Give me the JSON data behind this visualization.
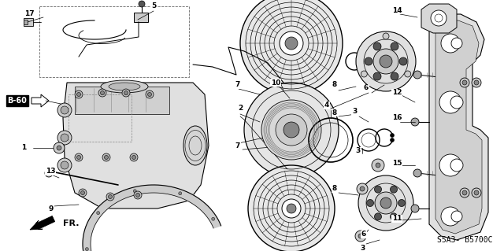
{
  "bg_color": "#ffffff",
  "diagram_ref": "S5A3- B5700C",
  "fig_w": 6.4,
  "fig_h": 3.19,
  "dpi": 100
}
